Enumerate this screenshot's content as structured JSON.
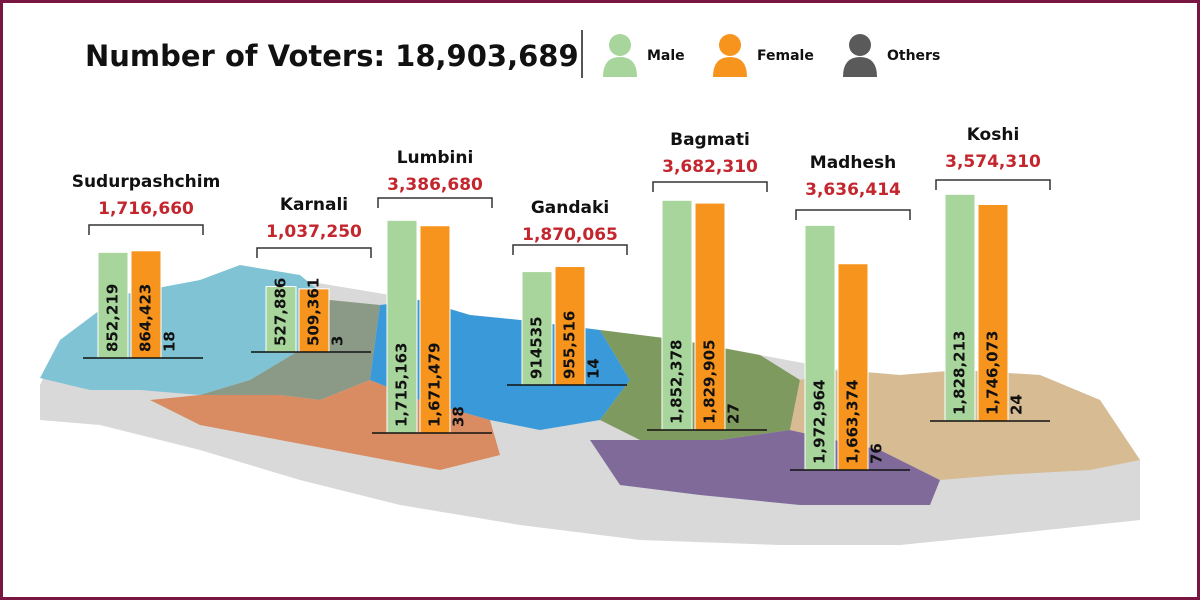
{
  "chart_data": {
    "type": "bar",
    "title": "Number of Voters: 18,903,689",
    "categories": [
      "Sudurpashchim",
      "Karnali",
      "Lumbini",
      "Gandaki",
      "Bagmati",
      "Madhesh",
      "Koshi"
    ],
    "totals": [
      "1,716,660",
      "1,037,250",
      "3,386,680",
      "1,870,065",
      "3,682,310",
      "3,636,414",
      "3,574,310"
    ],
    "series": [
      {
        "name": "Male",
        "color": "#a8d59c",
        "values": [
          852219,
          527886,
          1715163,
          914535,
          1852378,
          1972964,
          1828213
        ],
        "value_labels": [
          "852,219",
          "527,886",
          "1,715,163",
          "914535",
          "1,852,378",
          "1,972,964",
          "1,828,213"
        ]
      },
      {
        "name": "Female",
        "color": "#f7941d",
        "values": [
          864423,
          509361,
          1671479,
          955516,
          1829905,
          1663374,
          1746073
        ],
        "value_labels": [
          "864,423",
          "509,361",
          "1,671,479",
          "955,516",
          "1,829,905",
          "1,663,374",
          "1,746,073"
        ]
      },
      {
        "name": "Others",
        "color": "#5a5a5a",
        "values": [
          18,
          3,
          38,
          14,
          27,
          76,
          24
        ]
      }
    ]
  }
}
